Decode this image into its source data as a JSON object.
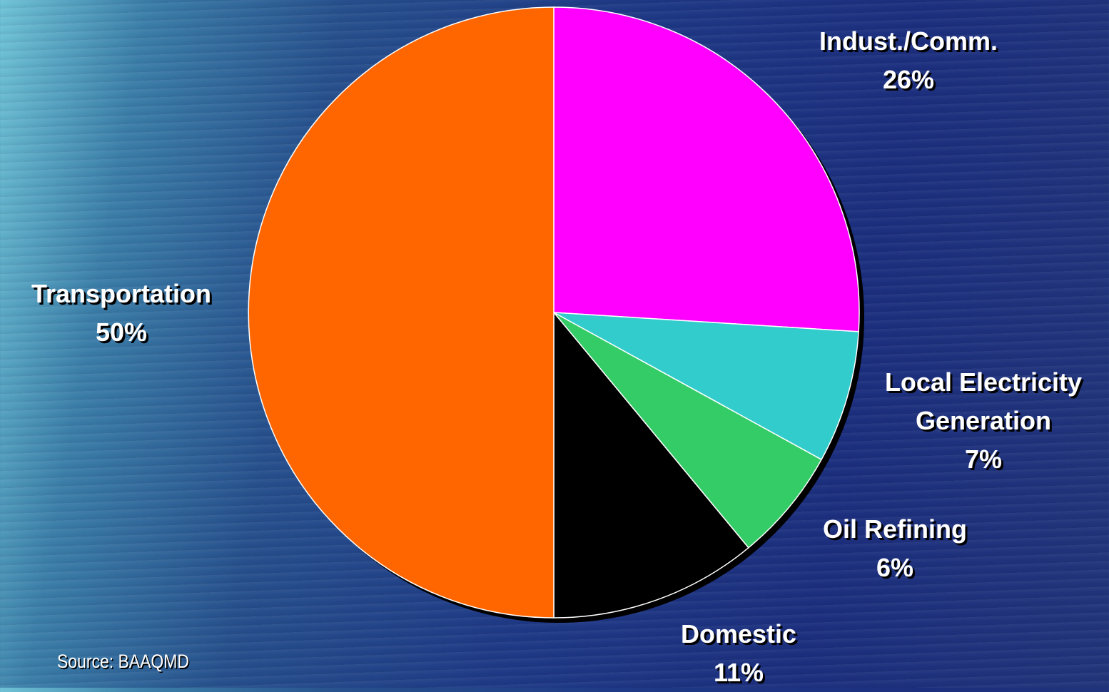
{
  "chart_data": {
    "type": "pie",
    "categories": [
      "Indust./Comm.",
      "Local Electricity Generation",
      "Oil Refining",
      "Domestic",
      "Transportation"
    ],
    "values": [
      26,
      7,
      6,
      11,
      50
    ],
    "value_labels": [
      "26%",
      "7%",
      "6%",
      "11%",
      "50%"
    ],
    "colors": [
      "#ff00ff",
      "#33cccc",
      "#33cc66",
      "#000000",
      "#ff6600"
    ],
    "source": "Source: BAAQMD"
  }
}
